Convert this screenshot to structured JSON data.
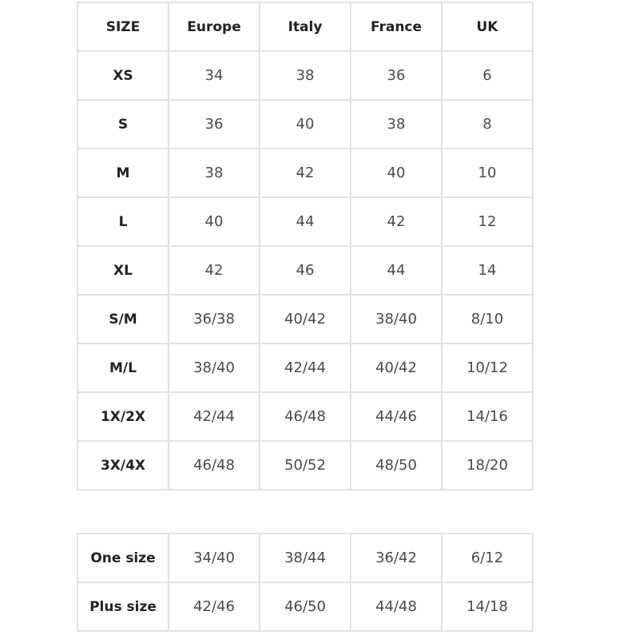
{
  "headers": [
    "SIZE",
    "Europe",
    "Italy",
    "France",
    "UK"
  ],
  "rows": [
    [
      "XS",
      "34",
      "38",
      "36",
      "6"
    ],
    [
      "S",
      "36",
      "40",
      "38",
      "8"
    ],
    [
      "M",
      "38",
      "42",
      "40",
      "10"
    ],
    [
      "L",
      "40",
      "44",
      "42",
      "12"
    ],
    [
      "XL",
      "42",
      "46",
      "44",
      "14"
    ],
    [
      "S/M",
      "36/38",
      "40/42",
      "38/40",
      "8/10"
    ],
    [
      "M/L",
      "38/40",
      "42/44",
      "40/42",
      "10/12"
    ],
    [
      "1X/2X",
      "42/44",
      "46/48",
      "44/46",
      "14/16"
    ],
    [
      "3X/4X",
      "46/48",
      "50/52",
      "48/50",
      "18/20"
    ]
  ],
  "extra_rows": [
    [
      "One size",
      "34/40",
      "38/44",
      "36/42",
      "6/12"
    ],
    [
      "Plus size",
      "42/46",
      "46/50",
      "44/48",
      "14/18"
    ]
  ],
  "colors": {
    "border": "#e2e2e2",
    "header_text": "#222222",
    "value_text": "#4a4a4a"
  }
}
